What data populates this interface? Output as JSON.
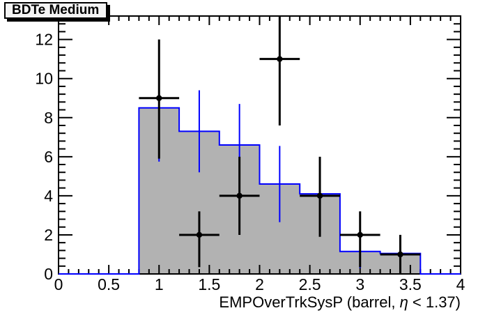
{
  "title_box": {
    "text": "BDTe Medium"
  },
  "colors": {
    "background": "#ffffff",
    "frame": "#000000",
    "histogram_fill": "#b2b2b2",
    "histogram_line": "#0000ff",
    "mc_error_bars": "#0000ff",
    "data_points": "#000000"
  },
  "axes": {
    "x": {
      "min": 0,
      "max": 4,
      "major_ticks": [
        0,
        0.5,
        1,
        1.5,
        2,
        2.5,
        3,
        3.5,
        4
      ],
      "tick_labels": [
        "0",
        "0.5",
        "1",
        "1.5",
        "2",
        "2.5",
        "3",
        "3.5",
        "4"
      ],
      "minor_step": 0.1,
      "label": "EMPOverTrkSysP (barrel,  η < 1.37)"
    },
    "y": {
      "min": 0,
      "max": 13.2,
      "major_ticks": [
        0,
        2,
        4,
        6,
        8,
        10,
        12
      ],
      "tick_labels": [
        "0",
        "2",
        "4",
        "6",
        "8",
        "10",
        "12"
      ],
      "minor_step": 0.4,
      "label": ""
    }
  },
  "chart_data": {
    "type": "bar",
    "title": "BDTe Medium",
    "xlabel": "EMPOverTrkSysP (barrel,  η < 1.37)",
    "ylabel": "",
    "xlim": [
      0,
      4
    ],
    "ylim": [
      0,
      13.2
    ],
    "grid": false,
    "legend": "none",
    "series": [
      {
        "name": "mc-histogram",
        "type": "step-histogram",
        "fill": "#b2b2b2",
        "line": "#0000ff",
        "bin_edges": [
          0.8,
          1.2,
          1.6,
          2.0,
          2.4,
          2.8,
          3.2,
          3.6
        ],
        "values": [
          8.5,
          7.3,
          6.6,
          4.6,
          4.1,
          1.15,
          1.05
        ],
        "stat_errors": [
          2.75,
          2.1,
          2.1,
          1.95,
          1.85,
          0.85,
          0.9
        ]
      },
      {
        "name": "data-points",
        "type": "scatter",
        "color": "#000000",
        "marker": "filled-circle",
        "x": [
          1.0,
          1.4,
          1.8,
          2.2,
          2.6,
          3.0,
          3.4
        ],
        "y": [
          9,
          2,
          4,
          11,
          4,
          2,
          1
        ],
        "xerr": 0.2,
        "y_err_low": [
          5.9,
          0.35,
          2.0,
          7.6,
          1.9,
          0.35,
          0.0
        ],
        "y_err_high": [
          12.0,
          3.2,
          6.0,
          14.3,
          6.0,
          3.2,
          2.0
        ]
      }
    ]
  }
}
